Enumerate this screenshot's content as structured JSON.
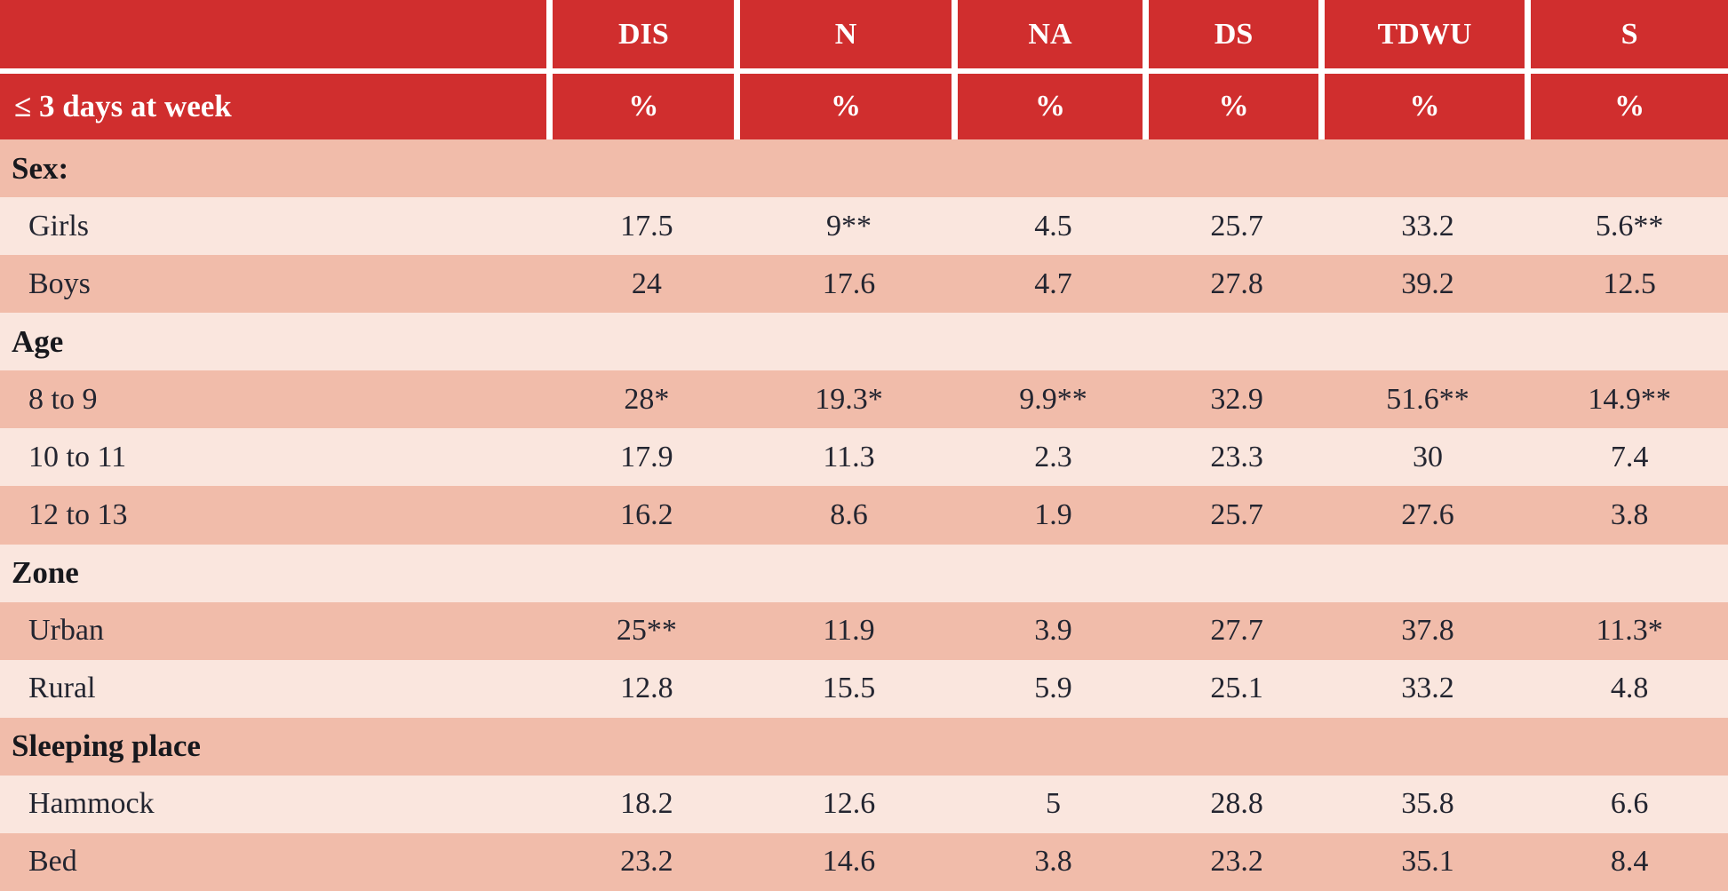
{
  "table": {
    "unit_label": "≤ 3 days at week",
    "unit": "%",
    "columns": [
      "DIS",
      "N",
      "NA",
      "DS",
      "TDWU",
      "S"
    ],
    "sections": [
      {
        "header": "Sex:",
        "rows": [
          {
            "label": "Girls",
            "values": [
              "17.5",
              "9**",
              "4.5",
              "25.7",
              "33.2",
              "5.6**"
            ]
          },
          {
            "label": "Boys",
            "values": [
              "24",
              "17.6",
              "4.7",
              "27.8",
              "39.2",
              "12.5"
            ]
          }
        ]
      },
      {
        "header": "Age",
        "rows": [
          {
            "label": "8 to 9",
            "values": [
              "28*",
              "19.3*",
              "9.9**",
              "32.9",
              "51.6**",
              "14.9**"
            ]
          },
          {
            "label": "10 to 11",
            "values": [
              "17.9",
              "11.3",
              "2.3",
              "23.3",
              "30",
              "7.4"
            ]
          },
          {
            "label": "12 to 13",
            "values": [
              "16.2",
              "8.6",
              "1.9",
              "25.7",
              "27.6",
              "3.8"
            ]
          }
        ]
      },
      {
        "header": "Zone",
        "rows": [
          {
            "label": "Urban",
            "values": [
              "25**",
              "11.9",
              "3.9",
              "27.7",
              "37.8",
              "11.3*"
            ]
          },
          {
            "label": "Rural",
            "values": [
              "12.8",
              "15.5",
              "5.9",
              "25.1",
              "33.2",
              "4.8"
            ]
          }
        ]
      },
      {
        "header": "Sleeping place",
        "rows": [
          {
            "label": "Hammock",
            "values": [
              "18.2",
              "12.6",
              "5",
              "28.8",
              "35.8",
              "6.6"
            ]
          },
          {
            "label": "Bed",
            "values": [
              "23.2",
              "14.6",
              "3.8",
              "23.2",
              "35.1",
              "8.4"
            ]
          }
        ]
      }
    ],
    "colors": {
      "header_red": "#d02e2e",
      "row_dark": "#f1bcaa",
      "row_light": "#fae6de",
      "header_text": "#ffffff",
      "body_text": "#232530"
    }
  },
  "chart_data": {
    "type": "table",
    "title": "≤ 3 days at week (%)",
    "columns": [
      "DIS",
      "N",
      "NA",
      "DS",
      "TDWU",
      "S"
    ],
    "rows": [
      {
        "group": "Sex:",
        "label": "Girls",
        "DIS": "17.5",
        "N": "9**",
        "NA": "4.5",
        "DS": "25.7",
        "TDWU": "33.2",
        "S": "5.6**"
      },
      {
        "group": "Sex:",
        "label": "Boys",
        "DIS": "24",
        "N": "17.6",
        "NA": "4.7",
        "DS": "27.8",
        "TDWU": "39.2",
        "S": "12.5"
      },
      {
        "group": "Age",
        "label": "8 to 9",
        "DIS": "28*",
        "N": "19.3*",
        "NA": "9.9**",
        "DS": "32.9",
        "TDWU": "51.6**",
        "S": "14.9**"
      },
      {
        "group": "Age",
        "label": "10 to 11",
        "DIS": "17.9",
        "N": "11.3",
        "NA": "2.3",
        "DS": "23.3",
        "TDWU": "30",
        "S": "7.4"
      },
      {
        "group": "Age",
        "label": "12 to 13",
        "DIS": "16.2",
        "N": "8.6",
        "NA": "1.9",
        "DS": "25.7",
        "TDWU": "27.6",
        "S": "3.8"
      },
      {
        "group": "Zone",
        "label": "Urban",
        "DIS": "25**",
        "N": "11.9",
        "NA": "3.9",
        "DS": "27.7",
        "TDWU": "37.8",
        "S": "11.3*"
      },
      {
        "group": "Zone",
        "label": "Rural",
        "DIS": "12.8",
        "N": "15.5",
        "NA": "5.9",
        "DS": "25.1",
        "TDWU": "33.2",
        "S": "4.8"
      },
      {
        "group": "Sleeping place",
        "label": "Hammock",
        "DIS": "18.2",
        "N": "12.6",
        "NA": "5",
        "DS": "28.8",
        "TDWU": "35.8",
        "S": "6.6"
      },
      {
        "group": "Sleeping place",
        "label": "Bed",
        "DIS": "23.2",
        "N": "14.6",
        "NA": "3.8",
        "DS": "23.2",
        "TDWU": "35.1",
        "S": "8.4"
      }
    ]
  }
}
